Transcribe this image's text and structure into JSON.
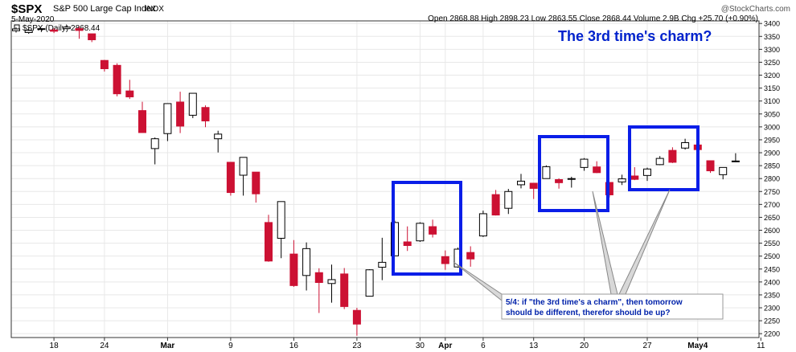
{
  "header": {
    "symbol": "$SPX",
    "name": "S&P 500 Large Cap Index",
    "exchange": "INDX",
    "date": "5-May-2020",
    "watermark": "@StockCharts.com",
    "ohlc_text": "Open 2868.88  High 2898.23  Low 2863.55  Close 2868.44  Volume 2.9B  Chg +25.70 (+0.90%)",
    "legend": "$SPX (Daily) 2868.44"
  },
  "annotations": {
    "title": "The 3rd time's charm?",
    "callout_line1": "5/4: if \"the 3rd time's a charm\", then tomorrow",
    "callout_line2": "should be different, therefor should be up?"
  },
  "colors": {
    "up_fill": "#ffffff",
    "down_fill": "#cc1133",
    "box": "#0a1ee8",
    "title": "#0022cc",
    "callout_text": "#0022aa",
    "grid": "#e8e8e8"
  },
  "chart_data": {
    "type": "candlestick",
    "ylim": [
      2185,
      3410
    ],
    "y_ticks": [
      2200,
      2250,
      2300,
      2350,
      2400,
      2450,
      2500,
      2550,
      2600,
      2650,
      2700,
      2750,
      2800,
      2850,
      2900,
      2950,
      3000,
      3050,
      3100,
      3150,
      3200,
      3250,
      3300,
      3350,
      3400
    ],
    "x_labels": [
      {
        "label": "18",
        "index": 3
      },
      {
        "label": "24",
        "index": 7
      },
      {
        "label": "Mar",
        "index": 12
      },
      {
        "label": "9",
        "index": 17
      },
      {
        "label": "16",
        "index": 22
      },
      {
        "label": "23",
        "index": 27
      },
      {
        "label": "30",
        "index": 32
      },
      {
        "label": "Apr",
        "index": 34
      },
      {
        "label": "6",
        "index": 37
      },
      {
        "label": "13",
        "index": 41
      },
      {
        "label": "20",
        "index": 45
      },
      {
        "label": "27",
        "index": 50
      },
      {
        "label": "May4",
        "index": 54
      },
      {
        "label": "11",
        "index": 59
      }
    ],
    "candles": [
      {
        "date": "2020-02-12",
        "o": 3372,
        "h": 3385,
        "l": 3365,
        "c": 3379
      },
      {
        "date": "2020-02-13",
        "o": 3365,
        "h": 3386,
        "l": 3360,
        "c": 3373
      },
      {
        "date": "2020-02-14",
        "o": 3378,
        "h": 3381,
        "l": 3367,
        "c": 3380
      },
      {
        "date": "2020-02-18",
        "o": 3375,
        "h": 3382,
        "l": 3363,
        "c": 3370
      },
      {
        "date": "2020-02-19",
        "o": 3380,
        "h": 3393,
        "l": 3378,
        "c": 3386
      },
      {
        "date": "2020-02-20",
        "o": 3380,
        "h": 3389,
        "l": 3341,
        "c": 3373
      },
      {
        "date": "2020-02-21",
        "o": 3360,
        "h": 3360,
        "l": 3328,
        "c": 3337
      },
      {
        "date": "2020-02-24",
        "o": 3257,
        "h": 3259,
        "l": 3214,
        "c": 3225
      },
      {
        "date": "2020-02-25",
        "o": 3238,
        "h": 3246,
        "l": 3118,
        "c": 3128
      },
      {
        "date": "2020-02-26",
        "o": 3139,
        "h": 3182,
        "l": 3108,
        "c": 3116
      },
      {
        "date": "2020-02-27",
        "o": 3063,
        "h": 3097,
        "l": 2977,
        "c": 2978
      },
      {
        "date": "2020-02-28",
        "o": 2916,
        "h": 2959,
        "l": 2855,
        "c": 2954
      },
      {
        "date": "2020-03-02",
        "o": 2974,
        "h": 3090,
        "l": 2945,
        "c": 3090
      },
      {
        "date": "2020-03-03",
        "o": 3096,
        "h": 3136,
        "l": 2976,
        "c": 3003
      },
      {
        "date": "2020-03-04",
        "o": 3045,
        "h": 3130,
        "l": 3034,
        "c": 3130
      },
      {
        "date": "2020-03-05",
        "o": 3075,
        "h": 3083,
        "l": 2999,
        "c": 3023
      },
      {
        "date": "2020-03-06",
        "o": 2954,
        "h": 2985,
        "l": 2901,
        "c": 2972
      },
      {
        "date": "2020-03-09",
        "o": 2863,
        "h": 2863,
        "l": 2734,
        "c": 2746
      },
      {
        "date": "2020-03-10",
        "o": 2813,
        "h": 2882,
        "l": 2734,
        "c": 2882
      },
      {
        "date": "2020-03-11",
        "o": 2825,
        "h": 2825,
        "l": 2707,
        "c": 2741
      },
      {
        "date": "2020-03-12",
        "o": 2630,
        "h": 2660,
        "l": 2478,
        "c": 2481
      },
      {
        "date": "2020-03-13",
        "o": 2569,
        "h": 2711,
        "l": 2492,
        "c": 2711
      },
      {
        "date": "2020-03-16",
        "o": 2508,
        "h": 2562,
        "l": 2381,
        "c": 2386
      },
      {
        "date": "2020-03-17",
        "o": 2425,
        "h": 2553,
        "l": 2367,
        "c": 2529
      },
      {
        "date": "2020-03-18",
        "o": 2436,
        "h": 2453,
        "l": 2280,
        "c": 2398
      },
      {
        "date": "2020-03-19",
        "o": 2394,
        "h": 2467,
        "l": 2320,
        "c": 2409
      },
      {
        "date": "2020-03-20",
        "o": 2431,
        "h": 2454,
        "l": 2295,
        "c": 2305
      },
      {
        "date": "2020-03-23",
        "o": 2290,
        "h": 2300,
        "l": 2192,
        "c": 2237
      },
      {
        "date": "2020-03-24",
        "o": 2345,
        "h": 2449,
        "l": 2345,
        "c": 2447
      },
      {
        "date": "2020-03-25",
        "o": 2457,
        "h": 2571,
        "l": 2407,
        "c": 2476
      },
      {
        "date": "2020-03-26",
        "o": 2501,
        "h": 2637,
        "l": 2500,
        "c": 2630
      },
      {
        "date": "2020-03-27",
        "o": 2555,
        "h": 2615,
        "l": 2520,
        "c": 2541
      },
      {
        "date": "2020-03-30",
        "o": 2559,
        "h": 2631,
        "l": 2555,
        "c": 2627
      },
      {
        "date": "2020-03-31",
        "o": 2614,
        "h": 2641,
        "l": 2572,
        "c": 2585
      },
      {
        "date": "2020-04-01",
        "o": 2498,
        "h": 2522,
        "l": 2447,
        "c": 2471
      },
      {
        "date": "2020-04-02",
        "o": 2458,
        "h": 2533,
        "l": 2455,
        "c": 2527
      },
      {
        "date": "2020-04-03",
        "o": 2514,
        "h": 2538,
        "l": 2459,
        "c": 2489
      },
      {
        "date": "2020-04-06",
        "o": 2578,
        "h": 2676,
        "l": 2574,
        "c": 2664
      },
      {
        "date": "2020-04-07",
        "o": 2738,
        "h": 2756,
        "l": 2657,
        "c": 2659
      },
      {
        "date": "2020-04-08",
        "o": 2685,
        "h": 2760,
        "l": 2663,
        "c": 2750
      },
      {
        "date": "2020-04-09",
        "o": 2776,
        "h": 2818,
        "l": 2762,
        "c": 2790
      },
      {
        "date": "2020-04-13",
        "o": 2782,
        "h": 2782,
        "l": 2721,
        "c": 2762
      },
      {
        "date": "2020-04-14",
        "o": 2800,
        "h": 2851,
        "l": 2800,
        "c": 2846
      },
      {
        "date": "2020-04-15",
        "o": 2796,
        "h": 2801,
        "l": 2761,
        "c": 2784
      },
      {
        "date": "2020-04-16",
        "o": 2800,
        "h": 2807,
        "l": 2765,
        "c": 2800
      },
      {
        "date": "2020-04-17",
        "o": 2843,
        "h": 2879,
        "l": 2830,
        "c": 2875
      },
      {
        "date": "2020-04-20",
        "o": 2845,
        "h": 2867,
        "l": 2821,
        "c": 2823
      },
      {
        "date": "2020-04-21",
        "o": 2785,
        "h": 2785,
        "l": 2727,
        "c": 2737
      },
      {
        "date": "2020-04-22",
        "o": 2787,
        "h": 2815,
        "l": 2775,
        "c": 2799
      },
      {
        "date": "2020-04-23",
        "o": 2810,
        "h": 2844,
        "l": 2794,
        "c": 2797
      },
      {
        "date": "2020-04-24",
        "o": 2812,
        "h": 2842,
        "l": 2791,
        "c": 2837
      },
      {
        "date": "2020-04-27",
        "o": 2854,
        "h": 2887,
        "l": 2852,
        "c": 2878
      },
      {
        "date": "2020-04-28",
        "o": 2909,
        "h": 2921,
        "l": 2860,
        "c": 2863
      },
      {
        "date": "2020-04-29",
        "o": 2918,
        "h": 2954,
        "l": 2912,
        "c": 2939
      },
      {
        "date": "2020-04-30",
        "o": 2930,
        "h": 2930,
        "l": 2892,
        "c": 2912
      },
      {
        "date": "2020-05-01",
        "o": 2869,
        "h": 2869,
        "l": 2822,
        "c": 2830
      },
      {
        "date": "2020-05-04",
        "o": 2815,
        "h": 2844,
        "l": 2797,
        "c": 2843
      },
      {
        "date": "2020-05-05",
        "o": 2868,
        "h": 2898,
        "l": 2864,
        "c": 2868
      }
    ]
  }
}
